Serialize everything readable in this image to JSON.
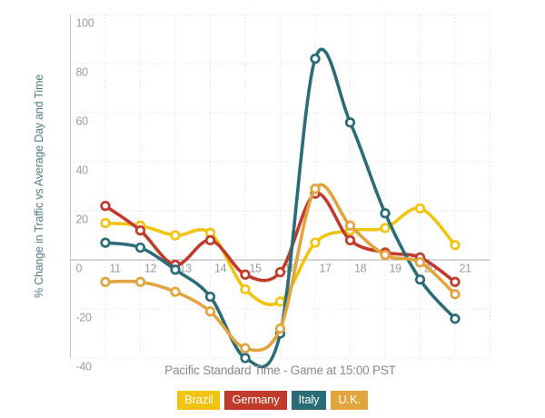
{
  "chart": {
    "y_axis_title": "% Change in Traffic vs Average Day and Time",
    "x_axis_title": "Pacific Standard Time - Game at 15:00 PST"
  },
  "chart_data": {
    "type": "line",
    "smooth": true,
    "marker": "circle-ring",
    "x": [
      11,
      12,
      13,
      14,
      15,
      16,
      17,
      18,
      19,
      20,
      21
    ],
    "series": [
      {
        "name": "Brazil",
        "color": "#F2C411",
        "values": [
          15,
          14,
          10,
          11,
          -12,
          -17,
          7,
          12,
          13,
          21,
          6
        ]
      },
      {
        "name": "Germany",
        "color": "#C03B2B",
        "values": [
          22,
          12,
          -2,
          8,
          -6,
          -5,
          27,
          8,
          3,
          1,
          -9
        ]
      },
      {
        "name": "Italy",
        "color": "#2A6C78",
        "values": [
          7,
          5,
          -4,
          -15,
          -40,
          -30,
          82,
          56,
          19,
          -8,
          -24
        ]
      },
      {
        "name": "U.K.",
        "color": "#E2A43D",
        "values": [
          -9,
          -9,
          -13,
          -21,
          -36,
          -28,
          29,
          14,
          2,
          -1,
          -14
        ]
      }
    ],
    "xlim": [
      10,
      22
    ],
    "ylim": [
      -40,
      100
    ],
    "x_ticks": [
      11,
      12,
      13,
      14,
      15,
      16,
      17,
      18,
      19,
      20,
      21
    ],
    "y_ticks": [
      100,
      80,
      60,
      40,
      20,
      0,
      -20,
      -40
    ],
    "grid": true,
    "legend_position": "bottom"
  },
  "colors": {
    "grid": "#D5D5D5",
    "zero_line": "#ABABAB",
    "axis_line": "#C4C4C4",
    "tick_label": "#9B9B9B",
    "y_axis_title": "#567E8B",
    "x_axis_title": "#8A8A8A",
    "marker_fill": "#FFFFFF",
    "background": "#FFFFFF"
  }
}
